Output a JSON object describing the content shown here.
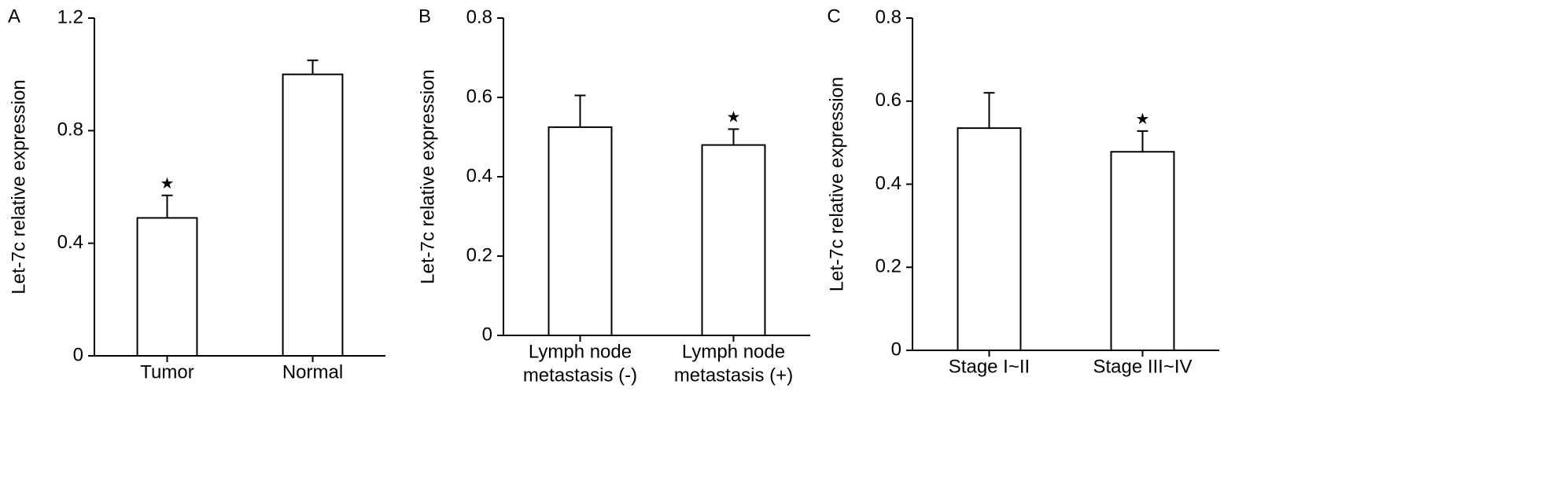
{
  "chart_data": [
    {
      "type": "bar",
      "panel": "A",
      "ylabel": "Let-7c relative expression",
      "categories": [
        [
          "Tumor"
        ],
        [
          "Normal"
        ]
      ],
      "values": [
        0.49,
        1.0
      ],
      "errors": [
        0.08,
        0.05
      ],
      "annotations": [
        "★",
        null
      ],
      "color": "#ffffff",
      "ylim": [
        0,
        1.2
      ],
      "yticks": [
        0,
        0.4,
        0.8,
        {
          "value": 1.2,
          "label": "1.2"
        }
      ]
    },
    {
      "type": "bar",
      "panel": "B",
      "ylabel": "Let-7c relative expression",
      "categories": [
        [
          "Lymph node",
          "metastasis (-)"
        ],
        [
          "Lymph node",
          "metastasis (+)"
        ]
      ],
      "values": [
        0.525,
        0.48
      ],
      "errors": [
        0.08,
        0.04
      ],
      "annotations": [
        null,
        "★"
      ],
      "color": "#ffffff",
      "ylim": [
        0,
        0.8
      ],
      "yticks": [
        0,
        0.2,
        0.4,
        0.6,
        0.8
      ]
    },
    {
      "type": "bar",
      "panel": "C",
      "ylabel": "Let-7c relative expression",
      "categories": [
        [
          "Stage I~II"
        ],
        [
          "Stage III~IV"
        ]
      ],
      "values": [
        0.535,
        0.478
      ],
      "errors": [
        0.085,
        0.05
      ],
      "annotations": [
        null,
        "★"
      ],
      "color": "#ffffff",
      "ylim": [
        0,
        0.8
      ],
      "yticks": [
        0,
        0.2,
        0.4,
        0.6,
        0.8
      ]
    }
  ]
}
